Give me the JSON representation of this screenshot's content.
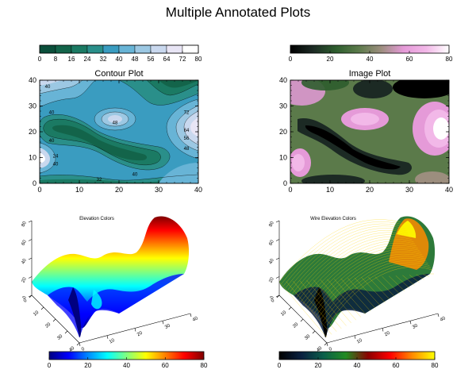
{
  "page": {
    "title": "Multiple Annotated Plots"
  },
  "colors": {
    "contour_table": [
      "#0b4f3b",
      "#13644a",
      "#1b7a63",
      "#2a8f8a",
      "#3a9cc0",
      "#68b4d6",
      "#9cc8e3",
      "#c9d8ee",
      "#e8e5f5",
      "#ffffff"
    ],
    "image_table": [
      "#000000",
      "#1c2a24",
      "#2d5d2e",
      "#5b7a4a",
      "#9c8e7e",
      "#e59ad8",
      "#f2b8e8",
      "#ffffff"
    ],
    "elevation_table": [
      "#000080",
      "#0000ff",
      "#0088ff",
      "#00ffff",
      "#80ff80",
      "#ffff00",
      "#ff8000",
      "#ff0000",
      "#800000"
    ],
    "wire_table": [
      "#000000",
      "#0a2040",
      "#0b5f4a",
      "#228b22",
      "#8b0000",
      "#ff0000",
      "#ff8c00",
      "#ffff00"
    ]
  },
  "chart_data": [
    {
      "type": "heatmap",
      "title": "Contour Plot",
      "xlabel": "",
      "ylabel": "",
      "xlim": [
        0,
        40
      ],
      "ylim": [
        0,
        40
      ],
      "xticks": [
        0,
        10,
        20,
        30,
        40
      ],
      "yticks": [
        0,
        10,
        20,
        30,
        40
      ],
      "colorbar": {
        "ticks": [
          0,
          8,
          16,
          24,
          32,
          40,
          48,
          56,
          64,
          72,
          80
        ],
        "range": [
          0,
          80
        ],
        "levels": 10
      },
      "contour_labels": [
        {
          "x": 2,
          "y": 37,
          "text": "40"
        },
        {
          "x": 3,
          "y": 27,
          "text": "40"
        },
        {
          "x": 19,
          "y": 23,
          "text": "48"
        },
        {
          "x": 3,
          "y": 16,
          "text": "40"
        },
        {
          "x": 4,
          "y": 10,
          "text": "24"
        },
        {
          "x": 4,
          "y": 7,
          "text": "40"
        },
        {
          "x": 37,
          "y": 27,
          "text": "72"
        },
        {
          "x": 37,
          "y": 20,
          "text": "64"
        },
        {
          "x": 37,
          "y": 17,
          "text": "56"
        },
        {
          "x": 37,
          "y": 13,
          "text": "48"
        },
        {
          "x": 15,
          "y": 1,
          "text": "32"
        },
        {
          "x": 24,
          "y": 3,
          "text": "40"
        }
      ]
    },
    {
      "type": "heatmap",
      "title": "Image Plot",
      "xlabel": "",
      "ylabel": "",
      "xlim": [
        0,
        40
      ],
      "ylim": [
        0,
        40
      ],
      "xticks": [
        0,
        10,
        20,
        30,
        40
      ],
      "yticks": [
        0,
        10,
        20,
        30,
        40
      ],
      "colorbar": {
        "ticks": [
          0,
          20,
          40,
          60,
          80
        ],
        "range": [
          0,
          80
        ]
      }
    },
    {
      "type": "surface",
      "title": "Elevation Colors",
      "zticks": [
        0,
        20,
        40,
        60,
        80
      ],
      "x_axis_ticks": [
        0,
        10,
        20,
        30,
        40
      ],
      "y_axis_ticks": [
        0,
        10,
        20,
        30,
        40
      ],
      "colorbar": {
        "ticks": [
          0,
          20,
          40,
          60,
          80
        ],
        "range": [
          0,
          80
        ]
      }
    },
    {
      "type": "surface",
      "title": "Wire Elevation Colors",
      "zticks": [
        0,
        20,
        40,
        60,
        80
      ],
      "x_axis_ticks": [
        0,
        10,
        20,
        30,
        40
      ],
      "y_axis_ticks": [
        0,
        10,
        20,
        30,
        40
      ],
      "colorbar": {
        "ticks": [
          0,
          20,
          40,
          60,
          80
        ],
        "range": [
          0,
          80
        ]
      }
    }
  ]
}
